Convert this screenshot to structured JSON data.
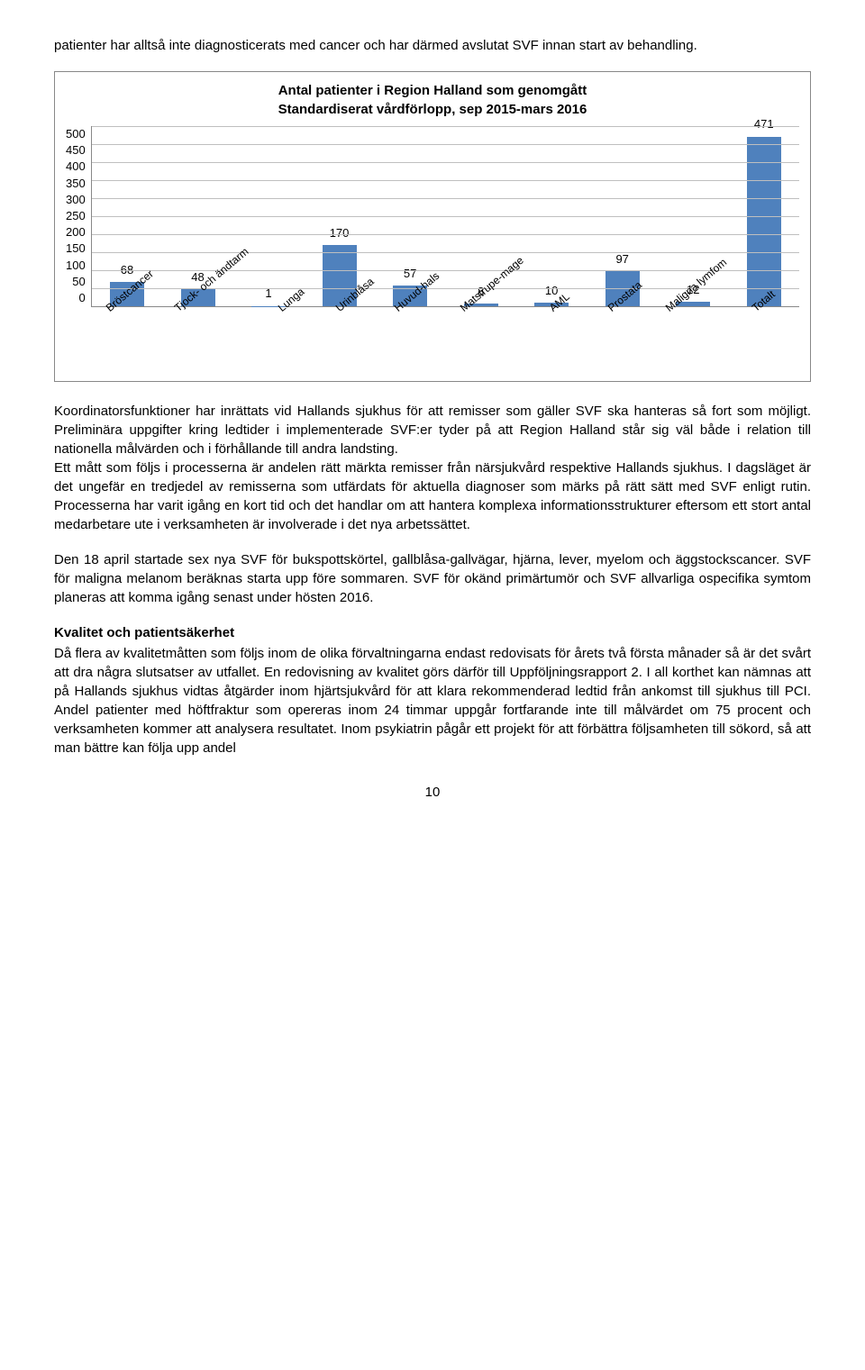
{
  "intro_para": "patienter har alltså inte diagnosticerats med cancer och har därmed avslutat SVF innan start av behandling.",
  "chart": {
    "type": "bar",
    "title_line1": "Antal patienter i Region Halland som genomgått",
    "title_line2": "Standardiserat vårdförlopp, sep 2015-mars 2016",
    "ymax": 500,
    "ytick_step": 50,
    "yticks": [
      "500",
      "450",
      "400",
      "350",
      "300",
      "250",
      "200",
      "150",
      "100",
      "50",
      "0"
    ],
    "categories": [
      "Bröstcancer",
      "Tjock- och ändtarm",
      "Lunga",
      "Urinblåsa",
      "Huvud-hals",
      "Matstrupe-mage",
      "AML",
      "Prostata",
      "Maligna lymfom",
      "Totalt"
    ],
    "values": [
      68,
      48,
      1,
      170,
      57,
      8,
      10,
      97,
      12,
      471
    ],
    "bar_color": "#4f81bd",
    "grid_color": "#bfbfbf",
    "axis_color": "#888888",
    "label_fontsize": 13,
    "title_fontsize": 15
  },
  "body_para_1": "Koordinatorsfunktioner har inrättats vid Hallands sjukhus för att remisser som gäller SVF ska hanteras så fort som möjligt. Preliminära uppgifter kring ledtider i implementerade SVF:er tyder på att Region Halland står sig väl både i relation till nationella målvärden och i förhållande till andra landsting.",
  "body_para_2": "Ett mått som följs i processerna är andelen rätt märkta remisser från närsjukvård respektive Hallands sjukhus. I dagsläget är det ungefär en tredjedel av remisserna som utfärdats för aktuella diagnoser som märks på rätt sätt med SVF enligt rutin. Processerna har varit igång en kort tid och det handlar om att hantera komplexa informationsstrukturer eftersom ett stort antal medarbetare ute i verksamheten är involverade i det nya arbetssättet.",
  "body_para_3": "Den 18 april startade sex nya SVF för bukspottskörtel, gallblåsa-gallvägar, hjärna, lever, myelom och äggstockscancer. SVF för maligna melanom beräknas starta upp före sommaren. SVF för okänd primärtumör och SVF allvarliga ospecifika symtom planeras att komma igång senast under hösten 2016.",
  "section_heading": "Kvalitet och patientsäkerhet",
  "body_para_4": "Då flera av kvalitetmåtten som följs inom de olika förvaltningarna endast redovisats för årets två första månader så är det svårt att dra några slutsatser av utfallet. En redovisning av kvalitet görs därför till Uppföljningsrapport 2. I all korthet kan nämnas att på Hallands sjukhus vidtas åtgärder inom hjärtsjukvård för att klara rekommenderad ledtid från ankomst till sjukhus till PCI. Andel patienter med höftfraktur som opereras inom 24 timmar uppgår fortfarande inte till målvärdet om 75 procent och verksamheten kommer att analysera resultatet. Inom psykiatrin pågår ett projekt för att förbättra följsamheten till sökord, så att man bättre kan följa upp andel",
  "page_number": "10"
}
